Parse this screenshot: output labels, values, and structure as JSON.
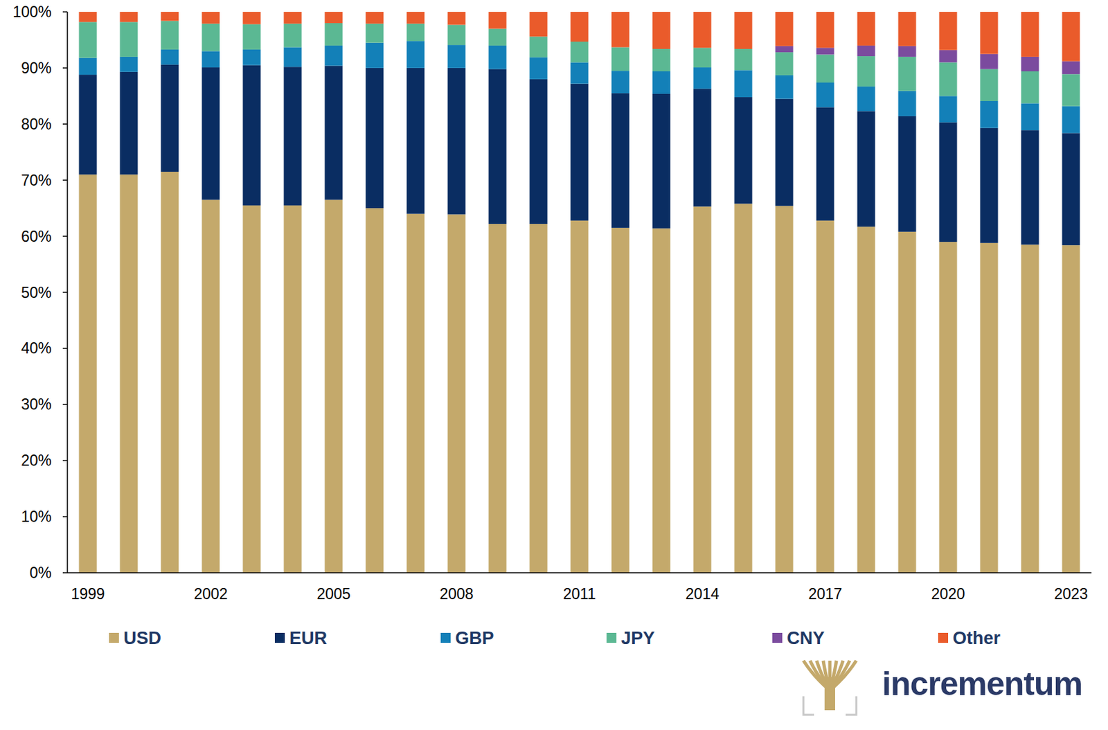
{
  "chart_data": {
    "type": "bar",
    "stacked": true,
    "grid": false,
    "legend": "bottom",
    "logo_text": "incrementum",
    "categories": [
      "1999",
      null,
      null,
      "2002",
      null,
      null,
      "2005",
      null,
      null,
      "2008",
      null,
      null,
      "2011",
      null,
      null,
      "2014",
      null,
      null,
      "2017",
      null,
      null,
      "2020",
      null,
      null,
      "2023"
    ],
    "ylim": [
      0,
      100
    ],
    "yticks": [
      {
        "value": 0,
        "label": "0%"
      },
      {
        "value": 10,
        "label": "10%"
      },
      {
        "value": 20,
        "label": "20%"
      },
      {
        "value": 30,
        "label": "30%"
      },
      {
        "value": 40,
        "label": "40%"
      },
      {
        "value": 50,
        "label": "50%"
      },
      {
        "value": 60,
        "label": "60%"
      },
      {
        "value": 70,
        "label": "70%"
      },
      {
        "value": 80,
        "label": "80%"
      },
      {
        "value": 90,
        "label": "90%"
      },
      {
        "value": 100,
        "label": "100%"
      }
    ],
    "series": [
      {
        "name": "USD",
        "color": "#c4a96b",
        "values": [
          71.0,
          71.0,
          71.5,
          66.5,
          65.5,
          65.5,
          66.5,
          65.0,
          64.0,
          63.9,
          62.2,
          62.2,
          62.8,
          61.5,
          61.4,
          65.3,
          65.8,
          65.4,
          62.8,
          61.7,
          60.8,
          59.0,
          58.8,
          58.5,
          58.4
        ]
      },
      {
        "name": "EUR",
        "color": "#0a2d62",
        "values": [
          17.8,
          18.3,
          19.1,
          23.6,
          25.0,
          24.7,
          23.9,
          25.0,
          26.0,
          26.1,
          27.6,
          25.8,
          24.4,
          24.0,
          24.0,
          21.0,
          19.0,
          19.1,
          20.2,
          20.6,
          20.6,
          21.3,
          20.5,
          20.4,
          20.0
        ]
      },
      {
        "name": "GBP",
        "color": "#1380b8",
        "values": [
          3.0,
          2.7,
          2.7,
          2.9,
          2.8,
          3.5,
          3.6,
          4.5,
          4.8,
          4.1,
          4.2,
          3.9,
          3.8,
          4.0,
          4.0,
          3.8,
          4.8,
          4.2,
          4.4,
          4.4,
          4.5,
          4.7,
          4.8,
          4.8,
          4.8
        ]
      },
      {
        "name": "JPY",
        "color": "#5bb893",
        "values": [
          6.4,
          6.2,
          5.1,
          4.9,
          4.5,
          4.2,
          4.0,
          3.4,
          3.1,
          3.6,
          3.0,
          3.7,
          3.7,
          4.2,
          4.0,
          3.5,
          3.8,
          4.1,
          5.0,
          5.4,
          6.1,
          6.0,
          5.7,
          5.7,
          5.7
        ]
      },
      {
        "name": "CNY",
        "color": "#7b4b9e",
        "values": [
          null,
          null,
          null,
          null,
          null,
          null,
          null,
          null,
          null,
          null,
          null,
          null,
          null,
          null,
          null,
          null,
          null,
          1.1,
          1.2,
          1.9,
          1.9,
          2.2,
          2.7,
          2.6,
          2.3
        ]
      },
      {
        "name": "Other",
        "color": "#ea5b2b",
        "values": [
          1.8,
          1.8,
          1.6,
          2.1,
          2.2,
          2.1,
          2.0,
          2.1,
          2.1,
          2.3,
          3.0,
          4.4,
          5.3,
          6.3,
          6.6,
          6.4,
          6.6,
          6.1,
          6.4,
          6.0,
          6.1,
          6.8,
          7.5,
          8.0,
          8.8
        ]
      }
    ]
  }
}
